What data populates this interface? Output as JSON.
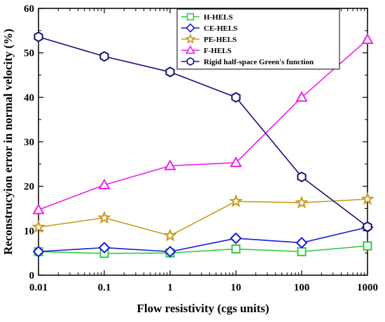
{
  "chart_data": {
    "type": "line",
    "xlabel": "Flow resistivity (cgs units)",
    "ylabel": "Reconstrucyion error in normal velocity (%)",
    "x_scale": "log",
    "x": [
      0.01,
      0.1,
      1,
      10,
      100,
      1000
    ],
    "x_tick_labels": [
      "0.01",
      "0.1",
      "1",
      "10",
      "100",
      "1000"
    ],
    "ylim": [
      0,
      60
    ],
    "y_ticks": [
      0,
      10,
      20,
      30,
      40,
      50,
      60
    ],
    "grid": false,
    "legend_placement": "top-right",
    "series": [
      {
        "name": "H-HELS",
        "color": "#2ecc40",
        "marker": "square",
        "values": [
          5.3,
          4.9,
          5.0,
          5.9,
          5.3,
          6.6
        ]
      },
      {
        "name": "CE-HELS",
        "color": "#1a1adc",
        "marker": "diamond",
        "values": [
          5.3,
          6.2,
          5.3,
          8.3,
          7.3,
          10.8
        ]
      },
      {
        "name": "PE-HELS",
        "color": "#c89b1e",
        "marker": "star",
        "values": [
          10.8,
          12.9,
          8.9,
          16.6,
          16.3,
          17.1
        ]
      },
      {
        "name": "F-HELS",
        "color": "#ee22ee",
        "marker": "triangle",
        "values": [
          14.7,
          20.3,
          24.6,
          25.3,
          40.0,
          53.0
        ]
      },
      {
        "name": "Rigid half-space Green's function",
        "color": "#141478",
        "marker": "hexagon",
        "values": [
          53.6,
          49.2,
          45.7,
          40.0,
          22.1,
          10.9
        ]
      }
    ]
  }
}
